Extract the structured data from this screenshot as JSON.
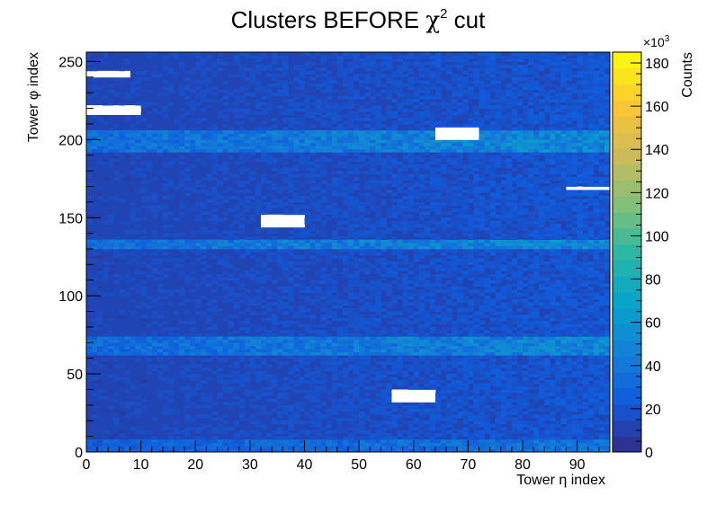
{
  "chart_data": {
    "type": "heatmap",
    "title": "Clusters BEFORE χ² cut",
    "title_main": "Clusters BEFORE ",
    "title_chi": "χ",
    "title_sup": "2",
    "title_end": " cut",
    "xlabel": "Tower η index",
    "ylabel": "Tower φ index",
    "zlabel": "Counts",
    "z_multiplier": "×10",
    "z_multiplier_exp": "3",
    "xlim": [
      0,
      96
    ],
    "ylim": [
      0,
      256
    ],
    "zlim": [
      0,
      185
    ],
    "x_ticks": [
      0,
      10,
      20,
      30,
      40,
      50,
      60,
      70,
      80,
      90
    ],
    "x_tick_labels": [
      "0",
      "10",
      "20",
      "30",
      "40",
      "50",
      "60",
      "70",
      "80",
      "90"
    ],
    "y_ticks": [
      0,
      50,
      100,
      150,
      200,
      250
    ],
    "y_tick_labels": [
      "0",
      "50",
      "100",
      "150",
      "200",
      "250"
    ],
    "z_ticks": [
      0,
      20,
      40,
      60,
      80,
      100,
      120,
      140,
      160,
      180
    ],
    "z_tick_labels": [
      "0",
      "20",
      "40",
      "60",
      "80",
      "100",
      "120",
      "140",
      "160",
      "180"
    ],
    "palette": [
      "#352a87",
      "#0f5cdd",
      "#1481d6",
      "#06a4ca",
      "#2eb7a4",
      "#87bf77",
      "#d1bb59",
      "#fec832",
      "#f9fb0e"
    ],
    "background_level": 12,
    "hot_bands_phi": [
      {
        "phi_min": 0,
        "phi_max": 8,
        "level": 24
      },
      {
        "phi_min": 62,
        "phi_max": 74,
        "level": 30
      },
      {
        "phi_min": 130,
        "phi_max": 136,
        "level": 32
      },
      {
        "phi_min": 192,
        "phi_max": 206,
        "level": 32
      }
    ],
    "empty_regions": [
      {
        "eta_min": 0,
        "eta_max": 8,
        "phi_min": 240,
        "phi_max": 243
      },
      {
        "eta_min": 0,
        "eta_max": 10,
        "phi_min": 216,
        "phi_max": 221
      },
      {
        "eta_min": 32,
        "eta_max": 40,
        "phi_min": 144,
        "phi_max": 151
      },
      {
        "eta_min": 56,
        "eta_max": 64,
        "phi_min": 32,
        "phi_max": 39
      },
      {
        "eta_min": 64,
        "eta_max": 72,
        "phi_min": 200,
        "phi_max": 207
      },
      {
        "eta_min": 88,
        "eta_max": 96,
        "phi_min": 168,
        "phi_max": 170
      }
    ]
  }
}
